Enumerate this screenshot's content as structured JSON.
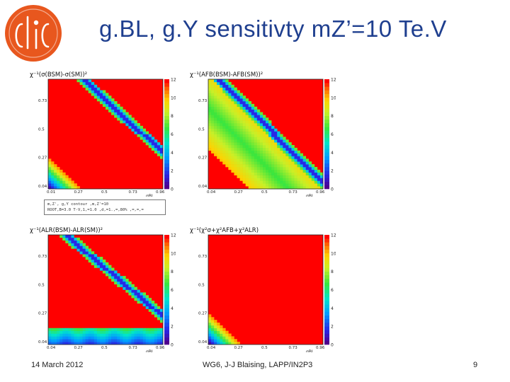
{
  "slide": {
    "title": "g.BL, g.Y sensitivty mZ’=10 Te.V",
    "logo_text": "clic",
    "footer_left": "14 March 2012",
    "footer_center": "WG6, J-J Blaising, LAPP/IN2P3",
    "page_number": "9"
  },
  "legend_box": {
    "line1": "m,Z', g,Y contour ,m,Z'=10",
    "line2": "ROOT,B=3.0 T-V,1,=1.0 ,d,=1.,=,80% ,=,=,="
  },
  "chart_data": [
    {
      "type": "heatmap",
      "ylabel": "χ⁻¹(σ(BSM)-σ(SM))²",
      "xlabel": "gBL",
      "x_ticks": [
        "0.01",
        "0.27",
        "0.5",
        "0.73",
        "0.96"
      ],
      "y_ticks": [
        "0.04",
        "0.27",
        "0.5",
        "0.73"
      ],
      "color_ticks": [
        "0",
        "2",
        "4",
        "6",
        "8",
        "10",
        "12"
      ],
      "color_range": [
        0,
        12
      ],
      "pattern": {
        "corner_blob": 0.3,
        "diag_line_at": 1.35,
        "diag_slope": 1.05
      }
    },
    {
      "type": "heatmap",
      "ylabel": "χ⁻¹(AFB(BSM)-AFB(SM))²",
      "xlabel": "gBL",
      "x_ticks": [
        "0.04",
        "0.27",
        "0.5",
        "0.73",
        "0.96"
      ],
      "y_ticks": [
        "0.04",
        "0.27",
        "0.5",
        "0.73"
      ],
      "color_ticks": [
        "0",
        "2",
        "4",
        "6",
        "8",
        "10",
        "12"
      ],
      "color_range": [
        0,
        12
      ],
      "pattern": {
        "wide_band": true,
        "diag_line_at": 1.05,
        "diag_slope": 0.95
      }
    },
    {
      "type": "heatmap",
      "ylabel": "χ⁻¹(ALR(BSM)-ALR(SM))²",
      "xlabel": "gBL",
      "x_ticks": [
        "0.04",
        "0.27",
        "0.5",
        "0.73",
        "0.96"
      ],
      "y_ticks": [
        "0.04",
        "0.27",
        "0.5",
        "0.73"
      ],
      "color_ticks": [
        "0",
        "2",
        "4",
        "6",
        "8",
        "10",
        "12"
      ],
      "color_range": [
        0,
        12
      ],
      "pattern": {
        "bottom_band": true,
        "diag_line_at": 1.3,
        "diag_slope": 1.15
      }
    },
    {
      "type": "heatmap",
      "ylabel": "χ⁻¹(χ²σ+χ²AFB+χ²ALR)",
      "xlabel": "gBL",
      "x_ticks": [
        "0.04",
        "0.27",
        "0.5",
        "0.73",
        "0.96"
      ],
      "y_ticks": [
        "0.04",
        "0.27",
        "0.5",
        "0.73"
      ],
      "color_ticks": [
        "0",
        "2",
        "4",
        "6",
        "8",
        "10",
        "12"
      ],
      "color_range": [
        0,
        12
      ],
      "pattern": {
        "corner_blob": 0.3
      }
    }
  ]
}
